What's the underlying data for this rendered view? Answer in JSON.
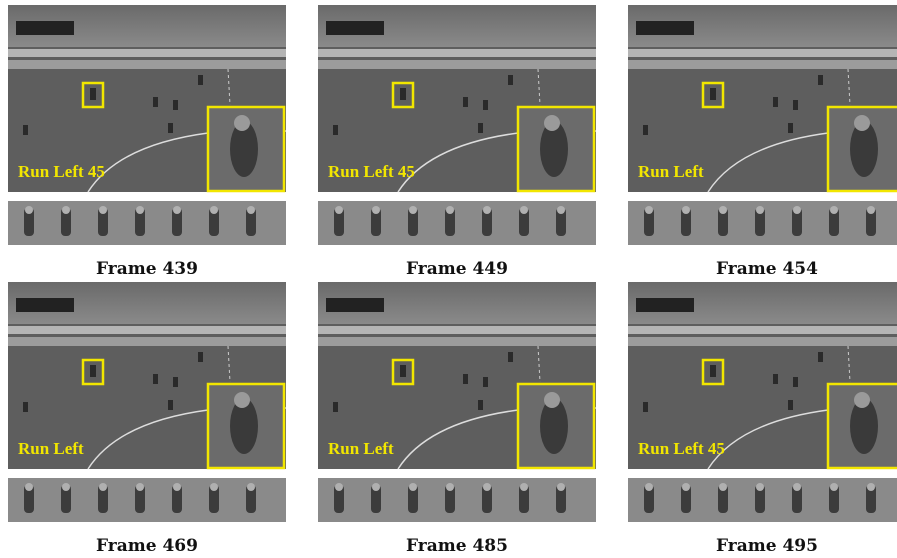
{
  "panels": [
    {
      "label": "Run Left 45",
      "caption": "Frame 439"
    },
    {
      "label": "Run Left 45",
      "caption": "Frame 449"
    },
    {
      "label": "Run Left",
      "caption": "Frame 454"
    },
    {
      "label": "Run Left",
      "caption": "Frame 469"
    },
    {
      "label": "Run Left",
      "caption": "Frame 485"
    },
    {
      "label": "Run Left 45",
      "caption": "Frame 495"
    }
  ]
}
